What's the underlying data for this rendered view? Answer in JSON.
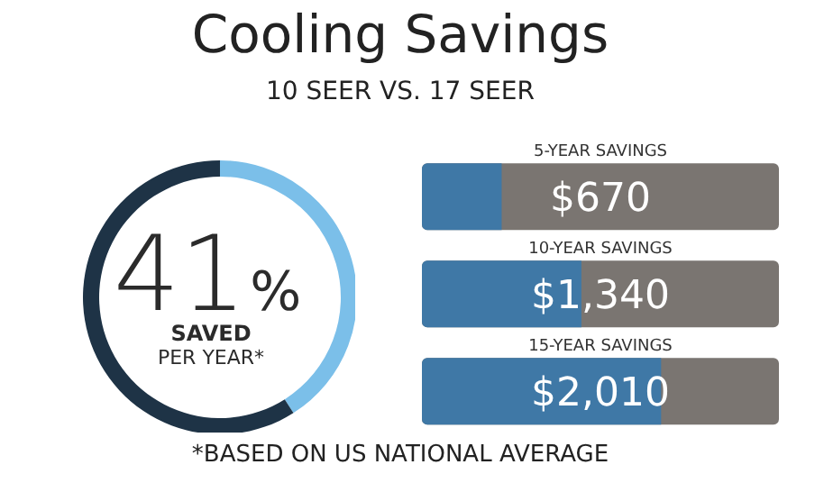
{
  "chart_data": [
    {
      "type": "donut",
      "title": "Cooling Savings",
      "subtitle": "10 SEER VS. 17 SEER",
      "categories": [
        null,
        null
      ],
      "values": [
        41,
        59
      ],
      "colors": [
        "#7bbfe9",
        "#1e3346"
      ],
      "value_labels": [
        "41%",
        null
      ],
      "annotations": [
        "SAVED",
        "PER YEAR*"
      ]
    },
    {
      "type": "bar",
      "orientation": "horizontal",
      "categories": [
        "5-YEAR SAVINGS",
        "10-YEAR SAVINGS",
        "15-YEAR SAVINGS"
      ],
      "values": [
        670,
        1340,
        2010
      ],
      "color": "#3f78a6",
      "xlim": [
        0,
        3000
      ],
      "tick_labels": false,
      "value_labels": [
        "$670",
        "$1,340",
        "$2,010"
      ],
      "annotations": [
        "*BASED ON US NATIONAL AVERAGE"
      ]
    }
  ]
}
